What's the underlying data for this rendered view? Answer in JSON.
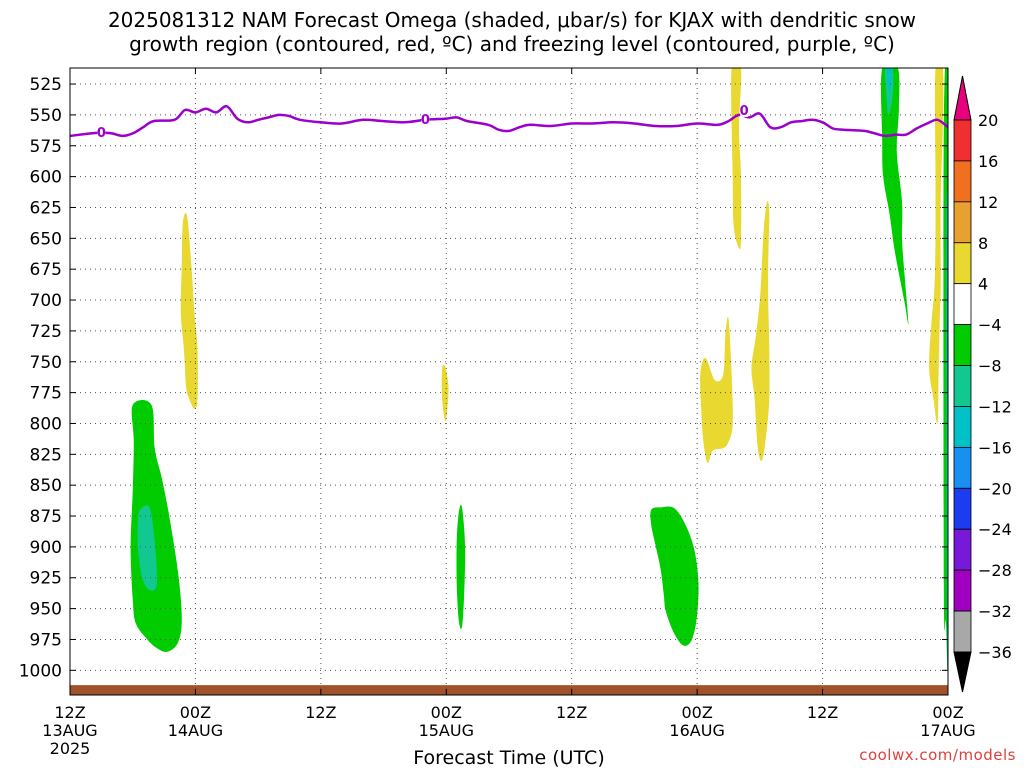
{
  "title_line1": "2025081312 NAM Forecast Omega (shaded, μbar/s) for KJAX with dendritic snow",
  "title_line2": "growth region (contoured, red, ºC) and freezing level (contoured, purple, ºC)",
  "credit": "coolwx.com/models",
  "chart_data": {
    "type": "contour",
    "xlabel": "Forecast Time (UTC)",
    "x_range_hours": [
      0,
      84
    ],
    "x_ticks": [
      {
        "hour": 0,
        "lines": [
          "12Z",
          "13AUG",
          "2025"
        ]
      },
      {
        "hour": 12,
        "lines": [
          "00Z",
          "14AUG"
        ]
      },
      {
        "hour": 24,
        "lines": [
          "12Z"
        ]
      },
      {
        "hour": 36,
        "lines": [
          "00Z",
          "15AUG"
        ]
      },
      {
        "hour": 48,
        "lines": [
          "12Z"
        ]
      },
      {
        "hour": 60,
        "lines": [
          "00Z",
          "16AUG"
        ]
      },
      {
        "hour": 72,
        "lines": [
          "12Z"
        ]
      },
      {
        "hour": 84,
        "lines": [
          "00Z",
          "17AUG"
        ]
      }
    ],
    "y_axis_pressure_hpa": [
      525,
      550,
      575,
      600,
      625,
      650,
      675,
      700,
      725,
      750,
      775,
      800,
      825,
      850,
      875,
      900,
      925,
      950,
      975,
      1000
    ],
    "y_range_hpa": [
      512,
      1020
    ],
    "colorbar": {
      "labels": [
        "20",
        "16",
        "12",
        "8",
        "4",
        "−4",
        "−8",
        "−12",
        "−16",
        "−20",
        "−24",
        "−28",
        "−32",
        "−36"
      ],
      "colors": [
        "#e8007c",
        "#f03030",
        "#f07020",
        "#e8a030",
        "#e8d830",
        "#ffffff",
        "#00cc00",
        "#10c890",
        "#00c0c8",
        "#1890f0",
        "#1c3cf0",
        "#7818d8",
        "#a000c0",
        "#a8a8a8",
        "#000000"
      ]
    },
    "freezing_level": {
      "color": "#9b00cc",
      "contour_label": "0",
      "points": [
        [
          0,
          567
        ],
        [
          2,
          565
        ],
        [
          3,
          564.5
        ],
        [
          4,
          565
        ],
        [
          5,
          567
        ],
        [
          6,
          565
        ],
        [
          7,
          560
        ],
        [
          8,
          555
        ],
        [
          10,
          554
        ],
        [
          11,
          546
        ],
        [
          12,
          548
        ],
        [
          13,
          545
        ],
        [
          14,
          548
        ],
        [
          15,
          543
        ],
        [
          16,
          553
        ],
        [
          17,
          556
        ],
        [
          18,
          554
        ],
        [
          19,
          552
        ],
        [
          20,
          550
        ],
        [
          21,
          551
        ],
        [
          22,
          554
        ],
        [
          24,
          556
        ],
        [
          26,
          557
        ],
        [
          28,
          554
        ],
        [
          30,
          555
        ],
        [
          32,
          556
        ],
        [
          34,
          554
        ],
        [
          36,
          553
        ],
        [
          37,
          552
        ],
        [
          38,
          555
        ],
        [
          40,
          558
        ],
        [
          41,
          562
        ],
        [
          42,
          563
        ],
        [
          43,
          560
        ],
        [
          44,
          558
        ],
        [
          46,
          559
        ],
        [
          48,
          557
        ],
        [
          50,
          557
        ],
        [
          52,
          556
        ],
        [
          54,
          557
        ],
        [
          56,
          559
        ],
        [
          58,
          559
        ],
        [
          60,
          557
        ],
        [
          62,
          558
        ],
        [
          63,
          555
        ],
        [
          64,
          550
        ],
        [
          65,
          552
        ],
        [
          66,
          549
        ],
        [
          67,
          560
        ],
        [
          68,
          560
        ],
        [
          69,
          556
        ],
        [
          70,
          555
        ],
        [
          71,
          554
        ],
        [
          72,
          556
        ],
        [
          73,
          561
        ],
        [
          74,
          562
        ],
        [
          76,
          563
        ],
        [
          77,
          565
        ],
        [
          78,
          567
        ],
        [
          79,
          566
        ],
        [
          80,
          566
        ],
        [
          81,
          561
        ],
        [
          82,
          557
        ],
        [
          83,
          554
        ],
        [
          84,
          560
        ]
      ],
      "label_positions": [
        [
          3,
          564
        ],
        [
          34,
          553.5
        ],
        [
          64.5,
          546
        ]
      ]
    },
    "ground": {
      "color": "#a0522d",
      "top_hpa": 1012
    },
    "omega_regions": [
      {
        "value_band": "-8 to -4",
        "color": "#00cc00",
        "points": [
          [
            6,
            785
          ],
          [
            7.8,
            785
          ],
          [
            8.1,
            820
          ],
          [
            8.8,
            845
          ],
          [
            9.6,
            880
          ],
          [
            10.4,
            925
          ],
          [
            10.7,
            960
          ],
          [
            10.3,
            978
          ],
          [
            9.3,
            985
          ],
          [
            8.3,
            982
          ],
          [
            7.4,
            975
          ],
          [
            6.3,
            962
          ],
          [
            6,
            942
          ],
          [
            5.8,
            900
          ],
          [
            6,
            855
          ],
          [
            6.1,
            815
          ]
        ]
      },
      {
        "value_band": "-12 to -8",
        "color": "#10c890",
        "points": [
          [
            6.7,
            870
          ],
          [
            7.6,
            868
          ],
          [
            8.1,
            895
          ],
          [
            8.3,
            930
          ],
          [
            7.6,
            935
          ],
          [
            6.9,
            925
          ],
          [
            6.5,
            900
          ],
          [
            6.5,
            880
          ]
        ]
      },
      {
        "value_band": "-8 to -4",
        "color": "#00cc00",
        "points": [
          [
            37.2,
            872
          ],
          [
            37.5,
            868
          ],
          [
            37.8,
            900
          ],
          [
            37.7,
            940
          ],
          [
            37.5,
            965
          ],
          [
            37.2,
            960
          ],
          [
            37,
            930
          ],
          [
            37,
            895
          ]
        ]
      },
      {
        "value_band": "-8 to -4",
        "color": "#00cc00",
        "points": [
          [
            55.6,
            870
          ],
          [
            56.5,
            868
          ],
          [
            58,
            870
          ],
          [
            59.5,
            895
          ],
          [
            60.1,
            925
          ],
          [
            60,
            955
          ],
          [
            59.5,
            975
          ],
          [
            58.7,
            980
          ],
          [
            57.8,
            970
          ],
          [
            57,
            952
          ],
          [
            56.8,
            938
          ],
          [
            56.5,
            918
          ],
          [
            56,
            898
          ],
          [
            55.6,
            882
          ]
        ]
      },
      {
        "value_band": "-8 to -4",
        "color": "#00cc00",
        "points": [
          [
            77.7,
            512
          ],
          [
            79.2,
            512
          ],
          [
            79.3,
            545
          ],
          [
            79.1,
            580
          ],
          [
            79.6,
            620
          ],
          [
            79.6,
            650
          ],
          [
            79.8,
            675
          ],
          [
            80.1,
            705
          ],
          [
            80.2,
            720
          ],
          [
            79.8,
            700
          ],
          [
            78.9,
            660
          ],
          [
            78.4,
            630
          ],
          [
            77.8,
            600
          ],
          [
            77.7,
            570
          ]
        ]
      },
      {
        "value_band": "-12 to -8",
        "color": "#10c890",
        "points": [
          [
            78,
            512
          ],
          [
            78.7,
            512
          ],
          [
            78.7,
            535
          ],
          [
            78.3,
            550
          ],
          [
            78.1,
            535
          ]
        ]
      },
      {
        "value_band": "-16 to -12",
        "color": "#00c0c8",
        "points": [
          [
            78.2,
            512
          ],
          [
            78.6,
            512
          ],
          [
            78.6,
            528
          ],
          [
            78.3,
            528
          ]
        ]
      },
      {
        "value_band": "-8 to -4",
        "color": "#00cc00",
        "points": [
          [
            83.6,
            560
          ],
          [
            84,
            540
          ],
          [
            84,
            970
          ],
          [
            83.8,
            960
          ],
          [
            83.6,
            930
          ]
        ]
      },
      {
        "value_band": "-16 to -12",
        "color": "#00c0c8",
        "points": [
          [
            83.85,
            650
          ],
          [
            84,
            650
          ],
          [
            84,
            965
          ],
          [
            83.9,
            955
          ]
        ]
      },
      {
        "value_band": "-20 to -16",
        "color": "#1890f0",
        "points": [
          [
            83.9,
            700
          ],
          [
            84,
            700
          ],
          [
            84,
            780
          ],
          [
            83.95,
            780
          ]
        ]
      },
      {
        "value_band": "4 to 8",
        "color": "#e8d830",
        "points": [
          [
            10.8,
            637
          ],
          [
            11.2,
            632
          ],
          [
            11.6,
            670
          ],
          [
            11.9,
            710
          ],
          [
            12.2,
            740
          ],
          [
            12.2,
            780
          ],
          [
            11.9,
            788
          ],
          [
            11.4,
            780
          ],
          [
            11.1,
            770
          ],
          [
            10.9,
            740
          ],
          [
            10.6,
            710
          ],
          [
            10.7,
            670
          ]
        ]
      },
      {
        "value_band": "4 to 8",
        "color": "#e8d830",
        "points": [
          [
            35.6,
            756
          ],
          [
            35.9,
            754
          ],
          [
            36.2,
            770
          ],
          [
            36.1,
            788
          ],
          [
            35.9,
            798
          ],
          [
            35.6,
            780
          ]
        ]
      },
      {
        "value_band": "4 to 8",
        "color": "#e8d830",
        "points": [
          [
            63.3,
            512
          ],
          [
            64.2,
            512
          ],
          [
            64,
            560
          ],
          [
            64.2,
            600
          ],
          [
            64.2,
            650
          ],
          [
            64,
            658
          ],
          [
            63.5,
            640
          ],
          [
            63.4,
            600
          ]
        ]
      },
      {
        "value_band": "4 to 8",
        "color": "#e8d830",
        "points": [
          [
            60.3,
            760
          ],
          [
            60.8,
            747
          ],
          [
            61.7,
            765
          ],
          [
            62.5,
            760
          ],
          [
            62.7,
            728
          ],
          [
            63,
            715
          ],
          [
            63.3,
            760
          ],
          [
            63.4,
            800
          ],
          [
            63,
            815
          ],
          [
            62.5,
            820
          ],
          [
            61.5,
            822
          ],
          [
            61,
            832
          ],
          [
            60.6,
            815
          ],
          [
            60.4,
            790
          ]
        ]
      },
      {
        "value_band": "4 to 8",
        "color": "#e8d830",
        "points": [
          [
            66.7,
            620
          ],
          [
            66.9,
            630
          ],
          [
            66.8,
            670
          ],
          [
            66.8,
            700
          ],
          [
            66.9,
            740
          ],
          [
            66.9,
            780
          ],
          [
            66.6,
            810
          ],
          [
            66.2,
            830
          ],
          [
            65.8,
            820
          ],
          [
            65.5,
            780
          ],
          [
            65.2,
            755
          ],
          [
            65.6,
            730
          ],
          [
            66,
            700
          ],
          [
            66.2,
            670
          ],
          [
            66.4,
            640
          ]
        ]
      },
      {
        "value_band": "4 to 8",
        "color": "#e8d830",
        "points": [
          [
            82.8,
            512
          ],
          [
            83.5,
            512
          ],
          [
            83.5,
            560
          ],
          [
            83.3,
            620
          ],
          [
            83.3,
            690
          ],
          [
            83.2,
            720
          ],
          [
            83.1,
            760
          ],
          [
            83,
            800
          ],
          [
            82.6,
            780
          ],
          [
            82.2,
            755
          ],
          [
            82.4,
            720
          ],
          [
            82.7,
            690
          ],
          [
            82.8,
            650
          ],
          [
            82.8,
            600
          ]
        ]
      }
    ]
  }
}
